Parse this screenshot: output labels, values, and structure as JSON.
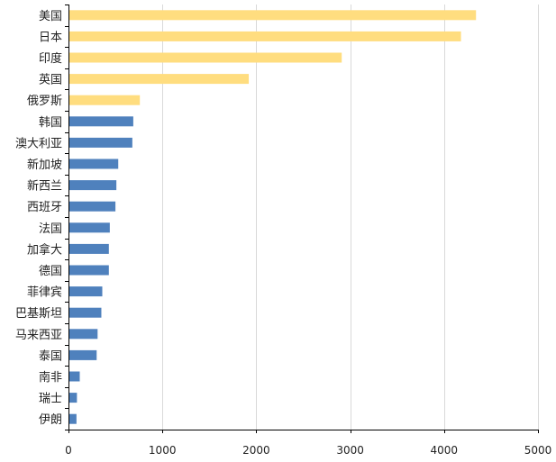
{
  "chart_data": {
    "type": "bar",
    "orientation": "horizontal",
    "title": "",
    "xlabel": "",
    "ylabel": "",
    "categories": [
      "美国",
      "日本",
      "印度",
      "英国",
      "俄罗斯",
      "韩国",
      "澳大利亚",
      "新加坡",
      "新西兰",
      "西班牙",
      "法国",
      "加拿大",
      "德国",
      "菲律宾",
      "巴基斯坦",
      "马来西亚",
      "泰国",
      "南非",
      "瑞士",
      "伊朗"
    ],
    "values": [
      4340,
      4180,
      2910,
      1920,
      760,
      690,
      680,
      530,
      510,
      500,
      440,
      430,
      430,
      360,
      350,
      310,
      300,
      120,
      90,
      85
    ],
    "highlight_count": 5,
    "colors": {
      "highlight": "#FFDD7F",
      "normal": "#4F81BD",
      "grid": "#D9D9D9",
      "axis": "#000000"
    },
    "xlim": [
      0,
      5000
    ],
    "xticks": [
      0,
      1000,
      2000,
      3000,
      4000,
      5000
    ],
    "grid": true,
    "legend": "none"
  }
}
